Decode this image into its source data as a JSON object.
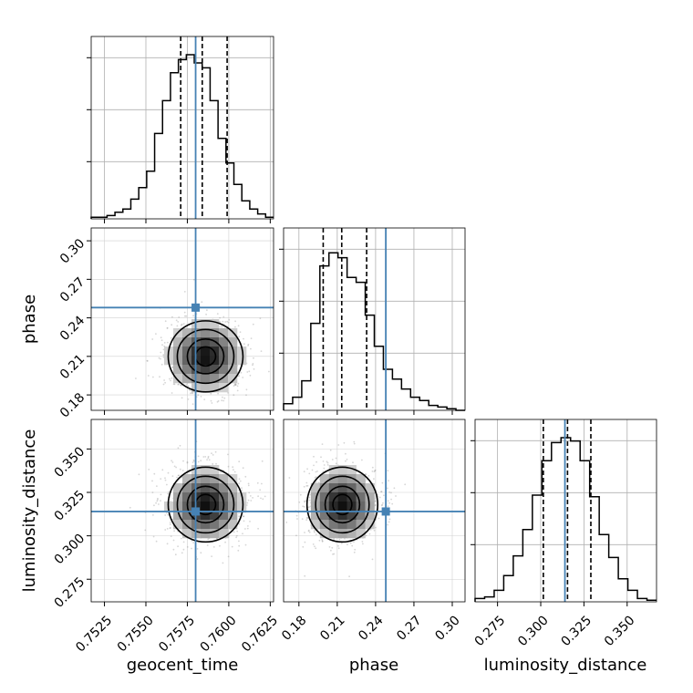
{
  "chart_data": {
    "type": "corner",
    "parameters": [
      "geocent_time",
      "phase",
      "luminosity_distance"
    ],
    "truths": [
      0.758,
      0.248,
      0.314
    ],
    "quantiles": [
      [
        0.7571,
        0.7584,
        0.7599
      ],
      [
        0.199,
        0.2135,
        0.233
      ],
      [
        0.3015,
        0.3155,
        0.329
      ]
    ],
    "ranges": [
      [
        0.7517,
        0.7627
      ],
      [
        0.168,
        0.31
      ],
      [
        0.262,
        0.367
      ]
    ],
    "ticks": [
      [
        "0.7525",
        "0.7550",
        "0.7575",
        "0.7600",
        "0.7625"
      ],
      [
        "0.18",
        "0.21",
        "0.24",
        "0.27",
        "0.30"
      ],
      [
        "0.275",
        "0.300",
        "0.325",
        "0.350"
      ]
    ],
    "tick_values": [
      [
        0.7525,
        0.755,
        0.7575,
        0.76,
        0.7625
      ],
      [
        0.18,
        0.21,
        0.24,
        0.27,
        0.3
      ],
      [
        0.275,
        0.3,
        0.325,
        0.35
      ]
    ],
    "histograms": [
      {
        "parameter": "geocent_time",
        "edges_range": [
          0.7517,
          0.7627
        ],
        "counts": [
          0.01,
          0.01,
          0.02,
          0.04,
          0.06,
          0.12,
          0.19,
          0.29,
          0.52,
          0.72,
          0.89,
          0.97,
          1.0,
          0.95,
          0.92,
          0.72,
          0.49,
          0.34,
          0.21,
          0.11,
          0.06,
          0.03,
          0.01
        ]
      },
      {
        "parameter": "phase",
        "edges_range": [
          0.168,
          0.31
        ],
        "counts": [
          0.04,
          0.08,
          0.18,
          0.53,
          0.88,
          0.96,
          0.93,
          0.81,
          0.78,
          0.58,
          0.39,
          0.25,
          0.19,
          0.13,
          0.08,
          0.06,
          0.03,
          0.02,
          0.01,
          0.0
        ]
      },
      {
        "parameter": "luminosity_distance",
        "edges_range": [
          0.262,
          0.367
        ],
        "counts": [
          0.02,
          0.03,
          0.07,
          0.16,
          0.28,
          0.44,
          0.65,
          0.86,
          0.97,
          1.0,
          0.98,
          0.86,
          0.64,
          0.41,
          0.27,
          0.14,
          0.07,
          0.02,
          0.01
        ]
      }
    ],
    "contours": [
      {
        "x": "geocent_time",
        "y": "phase",
        "center": [
          0.7586,
          0.21
        ],
        "sigma": [
          0.0011,
          0.0135
        ]
      },
      {
        "x": "geocent_time",
        "y": "luminosity_distance",
        "center": [
          0.7586,
          0.318
        ],
        "sigma": [
          0.0011,
          0.0105
        ]
      },
      {
        "x": "phase",
        "y": "luminosity_distance",
        "center": [
          0.214,
          0.318
        ],
        "sigma": [
          0.0135,
          0.0105
        ]
      }
    ],
    "xlabels": [
      "geocent_time",
      "phase",
      "luminosity_distance"
    ],
    "ylabels": [
      "",
      "phase",
      "luminosity_distance"
    ],
    "grid": true,
    "truth_color": "#4682b4"
  }
}
